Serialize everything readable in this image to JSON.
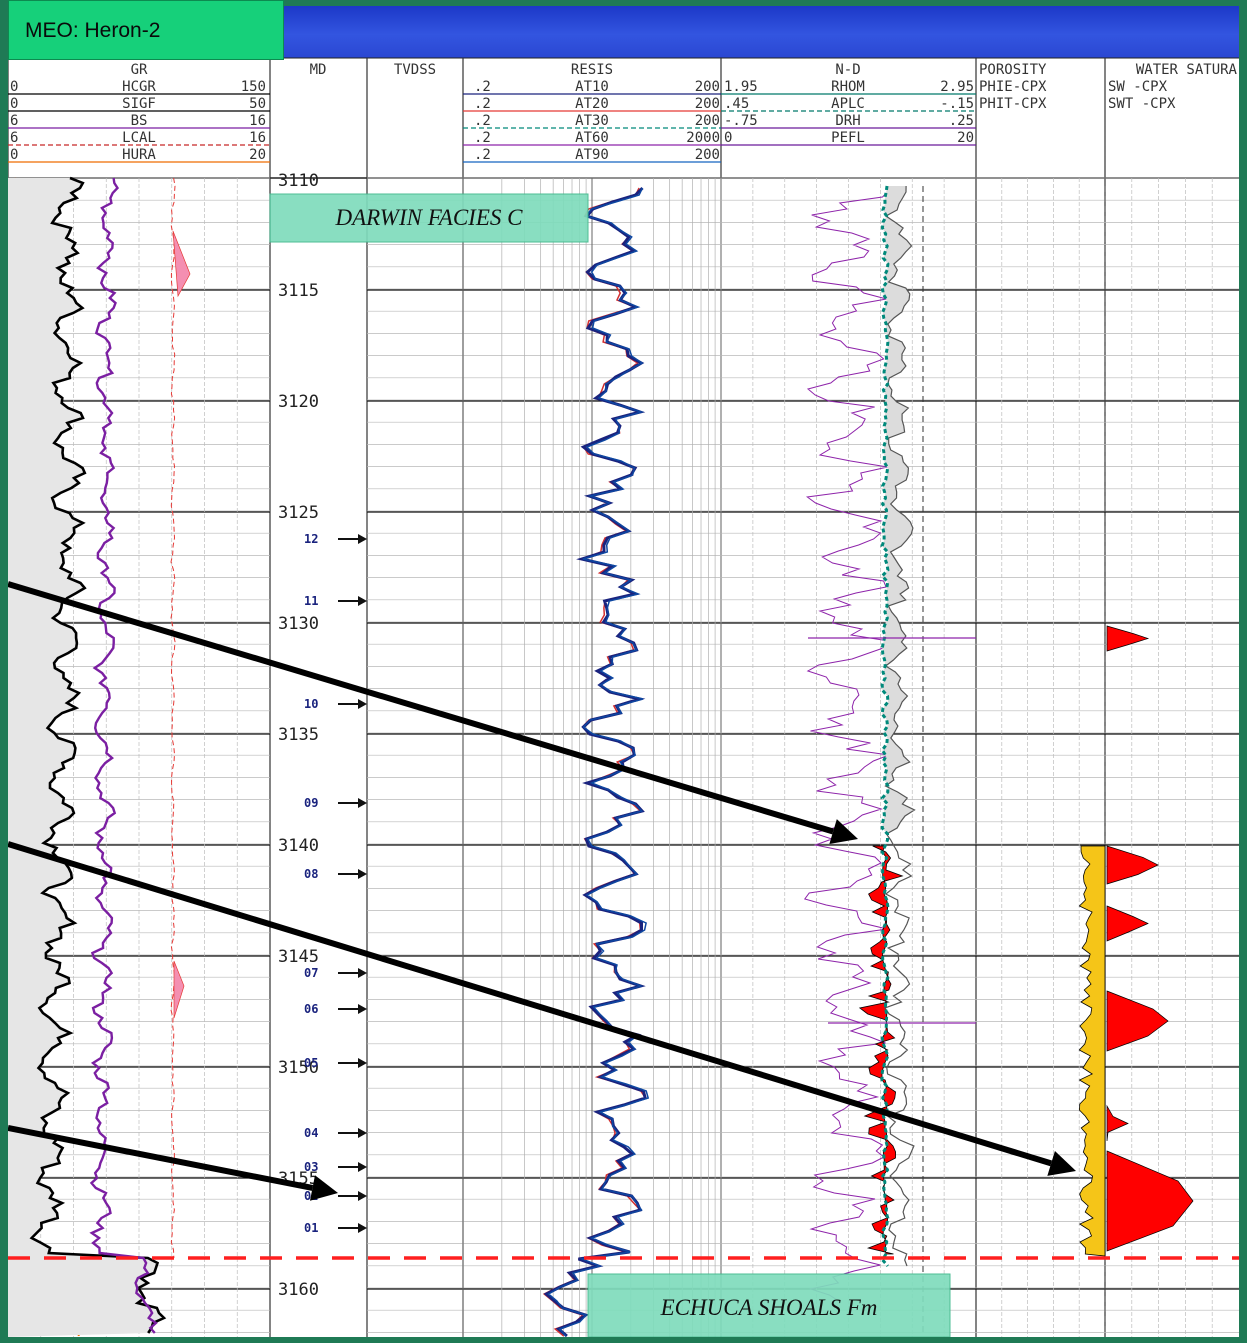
{
  "title": "MEO: Heron-2",
  "tracks": {
    "gr": {
      "header": "GR",
      "curves": [
        {
          "name": "HCGR",
          "min": "0",
          "max": "150",
          "color": "#000000"
        },
        {
          "name": "SIGF",
          "min": "0",
          "max": "50",
          "color": "#000000"
        },
        {
          "name": "BS",
          "min": "6",
          "max": "16",
          "color": "#7b1fa2"
        },
        {
          "name": "LCAL",
          "min": "6",
          "max": "16",
          "color": "#c62828"
        },
        {
          "name": "HURA",
          "min": "0",
          "max": "20",
          "color": "#ef6c00"
        }
      ]
    },
    "md": {
      "header": "MD"
    },
    "tvdss": {
      "header": "TVDSS"
    },
    "resis": {
      "header": "RESIS",
      "curves": [
        {
          "name": "AT10",
          "min": ".2",
          "max": "200"
        },
        {
          "name": "AT20",
          "min": ".2",
          "max": "200"
        },
        {
          "name": "AT30",
          "min": ".2",
          "max": "200"
        },
        {
          "name": "AT60",
          "min": ".2",
          "max": "2000"
        },
        {
          "name": "AT90",
          "min": ".2",
          "max": "200"
        }
      ]
    },
    "nd": {
      "header": "N-D",
      "curves": [
        {
          "name": "RHOM",
          "min": "1.95",
          "max": "2.95"
        },
        {
          "name": "APLC",
          "min": ".45",
          "max": "-.15"
        },
        {
          "name": "DRH",
          "min": "-.75",
          "max": ".25"
        },
        {
          "name": "PEFL",
          "min": "0",
          "max": "20"
        }
      ]
    },
    "poro": {
      "header": "POROSITY",
      "rows": [
        "PHIE-CPX",
        "PHIT-CPX"
      ]
    },
    "water": {
      "header": "WATER SATURA",
      "rows": [
        "SW   -CPX",
        "SWT  -CPX"
      ]
    }
  },
  "depth_labels": [
    "3115",
    "3120",
    "3125",
    "3130",
    "3135",
    "3140",
    "3145",
    "3150",
    "3155",
    "3160"
  ],
  "depth_top_partial": "3110",
  "sample_markers": [
    "12",
    "11",
    "10",
    "09",
    "08",
    "07",
    "06",
    "05",
    "04",
    "03",
    "02",
    "01"
  ],
  "annotations": {
    "facies_top": "DARWIN FACIES C",
    "facies_bottom": "ECHUCA SHOALS Fm"
  },
  "colors": {
    "title_bg": "#16d07a",
    "titlebar": "#2a47d2",
    "frame": "#1f7a55",
    "label_box": "#7fdcbc",
    "pay_red": "#ff0000",
    "sat_yellow": "#f5c518",
    "boundary": "#ff1f1f"
  }
}
